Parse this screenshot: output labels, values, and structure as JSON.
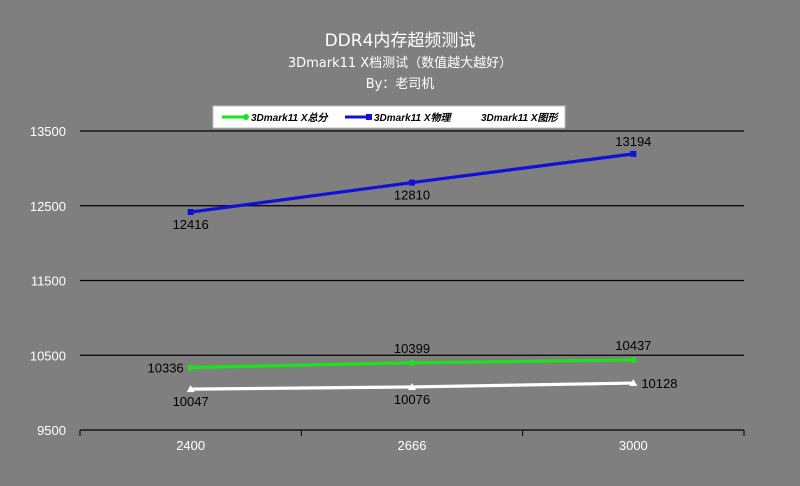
{
  "chart_data": {
    "type": "line",
    "title": "DDR4内存超频测试",
    "subtitle": "3Dmark11 X档测试（数值越大越好）",
    "author": "By：老司机",
    "categories": [
      "2400",
      "2666",
      "3000"
    ],
    "ylim": [
      9500,
      13500
    ],
    "yticks": [
      "9500",
      "10500",
      "11500",
      "12500",
      "13500"
    ],
    "grid": true,
    "legend_position": "top",
    "series": [
      {
        "name": "3Dmark11 X总分",
        "values": [
          10336,
          10399,
          10437
        ],
        "color": "#19e619",
        "marker": "circle"
      },
      {
        "name": "3Dmark11 X物理",
        "values": [
          12416,
          12810,
          13194
        ],
        "color": "#1010d8",
        "marker": "square"
      },
      {
        "name": "3Dmark11 X图形",
        "values": [
          10047,
          10076,
          10128
        ],
        "color": "#ffffff",
        "marker": "triangle"
      }
    ]
  }
}
